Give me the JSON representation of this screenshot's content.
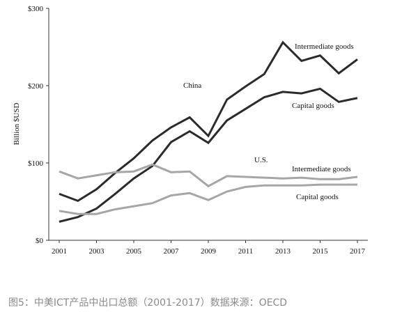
{
  "chart_data": {
    "type": "line",
    "title": "",
    "xlabel": "",
    "ylabel": "Billion $USD",
    "x": [
      2001,
      2002,
      2003,
      2004,
      2005,
      2006,
      2007,
      2008,
      2009,
      2010,
      2011,
      2012,
      2013,
      2014,
      2015,
      2016,
      2017
    ],
    "x_ticks": [
      "2001",
      "2003",
      "2005",
      "2007",
      "2009",
      "2011",
      "2013",
      "2015",
      "2017"
    ],
    "y_ticks": [
      "$0",
      "$100",
      "$200",
      "$300"
    ],
    "ylim": [
      0,
      300
    ],
    "grid": false,
    "series": [
      {
        "group": "China",
        "name": "Intermediate goods",
        "color": "#2b2b2b",
        "values": [
          60,
          51,
          66,
          87,
          106,
          129,
          146,
          159,
          135,
          182,
          199,
          215,
          256,
          232,
          239,
          216,
          234
        ]
      },
      {
        "group": "China",
        "name": "Capital goods",
        "color": "#2b2b2b",
        "values": [
          24,
          30,
          41,
          60,
          80,
          96,
          127,
          141,
          126,
          155,
          170,
          185,
          192,
          190,
          196,
          179,
          184
        ]
      },
      {
        "group": "U.S.",
        "name": "Intermediate goods",
        "color": "#a6a6a6",
        "values": [
          89,
          80,
          84,
          88,
          89,
          98,
          88,
          89,
          70,
          83,
          82,
          81,
          80,
          81,
          79,
          79,
          82
        ]
      },
      {
        "group": "U.S.",
        "name": "Capital goods",
        "color": "#a6a6a6",
        "values": [
          38,
          34,
          34,
          40,
          44,
          48,
          58,
          61,
          52,
          63,
          69,
          71,
          71,
          71,
          72,
          72,
          72
        ]
      }
    ],
    "annotations": {
      "china": "China",
      "china_intermediate": "Intermediate goods",
      "china_capital": "Capital goods",
      "us": "U.S.",
      "us_intermediate": "Intermediate goods",
      "us_capital": "Capital goods"
    }
  },
  "caption": "图5：中美ICT产品中出口总额（2001-2017）数据来源：OECD"
}
